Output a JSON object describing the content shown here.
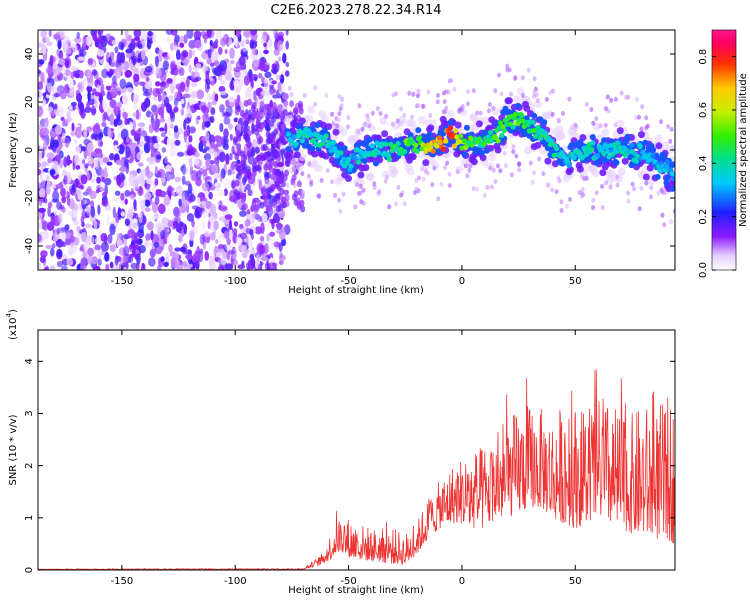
{
  "title": "C2E6.2023.278.22.34.R14",
  "chart_data": [
    {
      "type": "heatmap",
      "name": "spectrogram",
      "xlabel": "Height of straight line (km)",
      "ylabel": "Frequency (Hz)",
      "xlim": [
        -187,
        94
      ],
      "ylim": [
        -50,
        50
      ],
      "xticks": [
        -150,
        -100,
        -50,
        0,
        50
      ],
      "yticks": [
        -40,
        -20,
        0,
        20,
        40
      ],
      "colorbar": {
        "label": "Normalized spectral amplitude",
        "range": [
          0.0,
          0.9
        ],
        "ticks": [
          0.0,
          0.2,
          0.4,
          0.6,
          0.8
        ]
      },
      "noise_region_x": [
        -187,
        -77
      ],
      "ridge": {
        "x": [
          -77,
          -70,
          -60,
          -50,
          -40,
          -30,
          -20,
          -10,
          -5,
          0,
          10,
          15,
          20,
          25,
          30,
          35,
          40,
          45,
          50,
          55,
          60,
          70,
          80,
          90,
          94
        ],
        "center_hz": [
          3,
          6,
          4,
          -5,
          0,
          0,
          3,
          3,
          6,
          4,
          3,
          6,
          12,
          14,
          10,
          7,
          2,
          -3,
          -2,
          0,
          -1,
          0,
          -2,
          -8,
          -12
        ],
        "peak_amp": [
          0.35,
          0.45,
          0.42,
          0.4,
          0.42,
          0.5,
          0.62,
          0.78,
          0.85,
          0.6,
          0.5,
          0.55,
          0.55,
          0.58,
          0.52,
          0.48,
          0.45,
          0.4,
          0.42,
          0.44,
          0.42,
          0.42,
          0.4,
          0.38,
          0.35
        ]
      }
    },
    {
      "type": "line",
      "name": "snr",
      "xlabel": "Height of straight line (km)",
      "ylabel": "SNR (10 * v/v)",
      "scale_label": "(x10",
      "scale_exp": "4",
      "scale_close": ")",
      "xlim": [
        -187,
        94
      ],
      "ylim": [
        0,
        4.6
      ],
      "xticks": [
        -150,
        -100,
        -50,
        0,
        50
      ],
      "yticks": [
        0,
        1,
        2,
        3,
        4
      ],
      "color": "#ee3333",
      "envelope": {
        "x": [
          -187,
          -70,
          -62,
          -58,
          -55,
          -52,
          -50,
          -45,
          -40,
          -30,
          -25,
          -20,
          -15,
          -10,
          -5,
          0,
          5,
          10,
          15,
          20,
          25,
          30,
          35,
          40,
          45,
          50,
          55,
          60,
          65,
          70,
          75,
          80,
          85,
          90,
          94
        ],
        "base": [
          0.01,
          0.01,
          0.1,
          0.2,
          0.35,
          0.3,
          0.25,
          0.2,
          0.18,
          0.12,
          0.1,
          0.3,
          0.6,
          0.8,
          0.9,
          0.9,
          0.8,
          0.8,
          1.0,
          1.0,
          1.1,
          1.2,
          1.2,
          1.0,
          0.9,
          0.8,
          0.9,
          1.0,
          0.9,
          0.8,
          0.7,
          0.7,
          0.6,
          0.6,
          0.5
        ],
        "top": [
          0.02,
          0.03,
          0.3,
          0.7,
          1.0,
          1.1,
          1.0,
          0.9,
          0.8,
          0.8,
          0.7,
          0.9,
          1.4,
          1.7,
          2.0,
          2.2,
          2.3,
          2.4,
          2.6,
          2.9,
          3.1,
          3.2,
          3.1,
          3.0,
          3.2,
          3.2,
          3.1,
          3.3,
          3.2,
          3.1,
          3.0,
          3.2,
          3.1,
          3.3,
          3.3
        ]
      }
    }
  ]
}
